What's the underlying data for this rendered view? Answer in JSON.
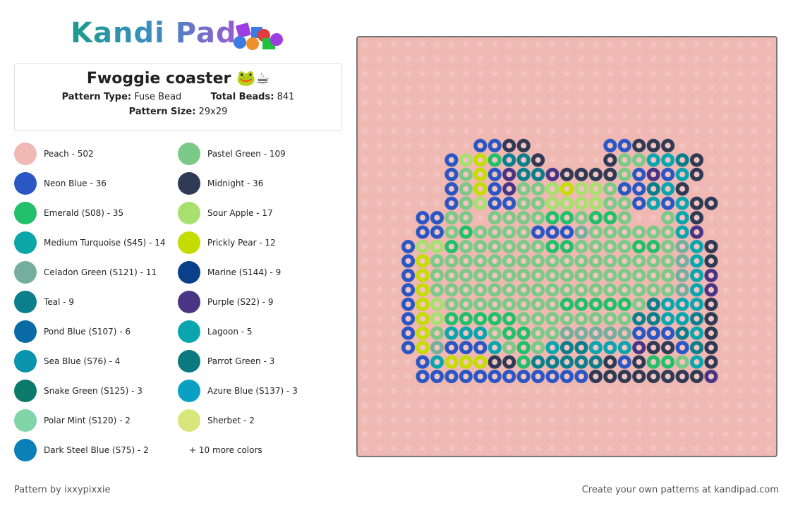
{
  "header": {
    "logo": "Kandi Pad"
  },
  "info": {
    "title": "Fwoggie coaster 🐸☕",
    "pattern_type_label": "Pattern Type:",
    "pattern_type": "Fuse Bead",
    "total_beads_label": "Total Beads:",
    "total_beads": 841,
    "pattern_size_label": "Pattern Size:",
    "pattern_size": "29x29"
  },
  "legend": {
    "items": [
      {
        "label": "Peach - 502",
        "color": "#f0b9b3"
      },
      {
        "label": "Pastel Green - 109",
        "color": "#7bc987"
      },
      {
        "label": "Neon Blue - 36",
        "color": "#2a57c4"
      },
      {
        "label": "Midnight - 36",
        "color": "#2f3a55"
      },
      {
        "label": "Emerald (S08) - 35",
        "color": "#22c06a"
      },
      {
        "label": "Sour Apple - 17",
        "color": "#a8e070"
      },
      {
        "label": "Medium Turquoise (S45) - 14",
        "color": "#0aa6a8"
      },
      {
        "label": "Prickly Pear - 12",
        "color": "#c5dc00"
      },
      {
        "label": "Celadon Green (S121) - 11",
        "color": "#76ae9e"
      },
      {
        "label": "Marine (S144) - 9",
        "color": "#0a3f8a"
      },
      {
        "label": "Teal - 9",
        "color": "#0b7f8c"
      },
      {
        "label": "Purple (S22) - 9",
        "color": "#4a3585"
      },
      {
        "label": "Pond Blue (S107) - 6",
        "color": "#0a6aa4"
      },
      {
        "label": "Lagoon - 5",
        "color": "#0aa6b0"
      },
      {
        "label": "Sea Blue (S76) - 4",
        "color": "#0993ac"
      },
      {
        "label": "Parrot Green - 3",
        "color": "#0b7a80"
      },
      {
        "label": "Snake Green (S125) - 3",
        "color": "#0b7a6a"
      },
      {
        "label": "Azure Blue (S137) - 3",
        "color": "#0aa0c4"
      },
      {
        "label": "Polar Mint (S120) - 2",
        "color": "#7fd4a8"
      },
      {
        "label": "Sherbet - 2",
        "color": "#d8e67a"
      },
      {
        "label": "Dark Steel Blue (S75) - 2",
        "color": "#0a7fb8"
      }
    ],
    "more": "+ 10 more colors"
  },
  "footer": {
    "credit": "Pattern by ixxypixxie",
    "cta": "Create your own patterns at kandipad.com"
  }
}
